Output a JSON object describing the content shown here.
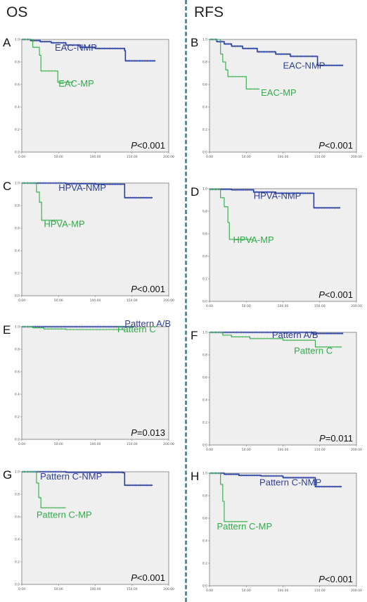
{
  "titles": {
    "left": "OS",
    "right": "RFS"
  },
  "colors": {
    "navy": "#2e3f8f",
    "navy_mark": "#4a62c9",
    "green": "#33aa4a",
    "green_mark": "#7ccf86"
  },
  "chart_data": [
    {
      "type": "line",
      "panel": "A",
      "p_prefix": "P",
      "p_value": "<0.001",
      "xlim": [
        0,
        200
      ],
      "ylim": [
        0,
        1.0
      ],
      "x_ticks": [
        "0.00",
        "50.00",
        "100.00",
        "150.00",
        "200.00"
      ],
      "y_ticks": [
        "0.0",
        "0.2",
        "0.4",
        "0.6",
        "0.8",
        "1.0"
      ],
      "series": [
        {
          "name": "EAC-NMP",
          "color": "navy",
          "label_anchor": [
            45,
            0.9
          ],
          "steps": [
            [
              0,
              1.0
            ],
            [
              12,
              0.99
            ],
            [
              25,
              0.98
            ],
            [
              40,
              0.97
            ],
            [
              60,
              0.95
            ],
            [
              80,
              0.93
            ],
            [
              100,
              0.92
            ],
            [
              140,
              0.9
            ],
            [
              141,
              0.81
            ],
            [
              182,
              0.81
            ]
          ]
        },
        {
          "name": "EAC-MP",
          "color": "green",
          "label_anchor": [
            50,
            0.58
          ],
          "steps": [
            [
              0,
              1.0
            ],
            [
              15,
              0.93
            ],
            [
              24,
              0.86
            ],
            [
              26,
              0.72
            ],
            [
              47,
              0.72
            ],
            [
              49,
              0.62
            ],
            [
              70,
              0.62
            ]
          ]
        }
      ]
    },
    {
      "type": "line",
      "panel": "B",
      "p_prefix": "P",
      "p_value": "<0.001",
      "xlim": [
        0,
        200
      ],
      "ylim": [
        0,
        1.0
      ],
      "x_ticks": [
        "0.00",
        "50.00",
        "100.00",
        "150.00",
        "200.00"
      ],
      "y_ticks": [
        "0.0",
        "0.2",
        "0.4",
        "0.6",
        "0.8",
        "1.0"
      ],
      "series": [
        {
          "name": "EAC-NMP",
          "color": "navy",
          "label_anchor": [
            100,
            0.74
          ],
          "steps": [
            [
              0,
              1.0
            ],
            [
              10,
              0.98
            ],
            [
              20,
              0.96
            ],
            [
              30,
              0.94
            ],
            [
              45,
              0.92
            ],
            [
              65,
              0.89
            ],
            [
              90,
              0.87
            ],
            [
              110,
              0.85
            ],
            [
              145,
              0.85
            ],
            [
              147,
              0.77
            ],
            [
              182,
              0.77
            ]
          ]
        },
        {
          "name": "EAC-MP",
          "color": "green",
          "label_anchor": [
            70,
            0.5
          ],
          "steps": [
            [
              0,
              1.0
            ],
            [
              15,
              0.87
            ],
            [
              18,
              0.8
            ],
            [
              22,
              0.73
            ],
            [
              25,
              0.67
            ],
            [
              47,
              0.67
            ],
            [
              50,
              0.56
            ],
            [
              68,
              0.56
            ]
          ]
        }
      ]
    },
    {
      "type": "line",
      "panel": "C",
      "p_prefix": "P",
      "p_value": "<0.001",
      "xlim": [
        0,
        200
      ],
      "ylim": [
        0,
        1.0
      ],
      "x_ticks": [
        "0.00",
        "50.00",
        "100.00",
        "150.00",
        "200.00"
      ],
      "y_ticks": [
        "0.0",
        "0.2",
        "0.4",
        "0.6",
        "0.8",
        "1.0"
      ],
      "series": [
        {
          "name": "HPVA-NMP",
          "color": "navy",
          "label_anchor": [
            50,
            0.93
          ],
          "steps": [
            [
              0,
              1.0
            ],
            [
              60,
              0.995
            ],
            [
              100,
              0.99
            ],
            [
              138,
              0.99
            ],
            [
              140,
              0.87
            ],
            [
              178,
              0.87
            ]
          ]
        },
        {
          "name": "HPVA-MP",
          "color": "green",
          "label_anchor": [
            30,
            0.61
          ],
          "steps": [
            [
              0,
              1.0
            ],
            [
              20,
              0.92
            ],
            [
              24,
              0.83
            ],
            [
              27,
              0.67
            ],
            [
              38,
              0.67
            ],
            [
              55,
              0.67
            ]
          ]
        }
      ]
    },
    {
      "type": "line",
      "panel": "D",
      "p_prefix": "P",
      "p_value": "<0.001",
      "xlim": [
        0,
        200
      ],
      "ylim": [
        0,
        1.0
      ],
      "x_ticks": [
        "0.00",
        "50.00",
        "100.00",
        "150.00",
        "200.00"
      ],
      "y_ticks": [
        "0.0",
        "0.2",
        "0.4",
        "0.6",
        "0.8",
        "1.0"
      ],
      "series": [
        {
          "name": "HPVA-NMP",
          "color": "navy",
          "label_anchor": [
            60,
            0.91
          ],
          "steps": [
            [
              0,
              0.995
            ],
            [
              30,
              0.99
            ],
            [
              60,
              0.97
            ],
            [
              90,
              0.96
            ],
            [
              140,
              0.96
            ],
            [
              142,
              0.83
            ],
            [
              178,
              0.83
            ]
          ]
        },
        {
          "name": "HPVA-MP",
          "color": "green",
          "label_anchor": [
            32,
            0.52
          ],
          "steps": [
            [
              0,
              0.995
            ],
            [
              15,
              0.92
            ],
            [
              20,
              0.84
            ],
            [
              25,
              0.7
            ],
            [
              27,
              0.55
            ],
            [
              60,
              0.55
            ]
          ]
        }
      ]
    },
    {
      "type": "line",
      "panel": "E",
      "p_prefix": "P",
      "p_value": "=0.013",
      "xlim": [
        0,
        200
      ],
      "ylim": [
        0,
        1.0
      ],
      "x_ticks": [
        "0.00",
        "50.00",
        "100.00",
        "150.00",
        "200.00"
      ],
      "y_ticks": [
        "0.0",
        "0.2",
        "0.4",
        "0.6",
        "0.8",
        "1.0"
      ],
      "series": [
        {
          "name": "Pattern A/B",
          "color": "navy",
          "label_anchor": [
            140,
            1.0
          ],
          "steps": [
            [
              0,
              1.0
            ],
            [
              140,
              1.0
            ],
            [
              152,
              0.995
            ]
          ]
        },
        {
          "name": "Pattern C",
          "color": "green",
          "label_anchor": [
            130,
            0.95
          ],
          "steps": [
            [
              0,
              1.0
            ],
            [
              15,
              0.99
            ],
            [
              30,
              0.98
            ],
            [
              60,
              0.975
            ],
            [
              140,
              0.975
            ]
          ]
        }
      ]
    },
    {
      "type": "line",
      "panel": "F",
      "p_prefix": "P",
      "p_value": "=0.011",
      "xlim": [
        0,
        200
      ],
      "ylim": [
        0,
        1.0
      ],
      "x_ticks": [
        "0.00",
        "50.00",
        "100.00",
        "150.00",
        "200.00"
      ],
      "y_ticks": [
        "0.0",
        "0.2",
        "0.4",
        "0.6",
        "0.8",
        "1.0"
      ],
      "series": [
        {
          "name": "Pattern A/B",
          "color": "navy",
          "label_anchor": [
            85,
            0.95
          ],
          "steps": [
            [
              0,
              1.0
            ],
            [
              40,
              1.0
            ],
            [
              140,
              0.99
            ],
            [
              182,
              0.99
            ]
          ]
        },
        {
          "name": "Pattern C",
          "color": "green",
          "label_anchor": [
            115,
            0.81
          ],
          "steps": [
            [
              0,
              1.0
            ],
            [
              18,
              0.975
            ],
            [
              30,
              0.96
            ],
            [
              55,
              0.945
            ],
            [
              100,
              0.93
            ],
            [
              142,
              0.93
            ],
            [
              144,
              0.87
            ],
            [
              180,
              0.87
            ]
          ]
        }
      ]
    },
    {
      "type": "line",
      "panel": "G",
      "p_prefix": "P",
      "p_value": "<0.001",
      "xlim": [
        0,
        200
      ],
      "ylim": [
        0,
        1.0
      ],
      "x_ticks": [
        "0.00",
        "50.00",
        "100.00",
        "150.00",
        "200.00"
      ],
      "y_ticks": [
        "0.0",
        "0.2",
        "0.4",
        "0.6",
        "0.8",
        "1.0"
      ],
      "series": [
        {
          "name": "Pattern C-NMP",
          "color": "navy",
          "label_anchor": [
            25,
            0.93
          ],
          "steps": [
            [
              0,
              1.0
            ],
            [
              60,
              0.995
            ],
            [
              138,
              0.99
            ],
            [
              140,
              0.88
            ],
            [
              178,
              0.88
            ]
          ]
        },
        {
          "name": "Pattern C-MP",
          "color": "green",
          "label_anchor": [
            20,
            0.59
          ],
          "steps": [
            [
              0,
              1.0
            ],
            [
              20,
              0.9
            ],
            [
              23,
              0.77
            ],
            [
              26,
              0.68
            ],
            [
              55,
              0.68
            ],
            [
              60,
              0.68
            ]
          ]
        }
      ]
    },
    {
      "type": "line",
      "panel": "H",
      "p_prefix": "P",
      "p_value": "<0.001",
      "xlim": [
        0,
        200
      ],
      "ylim": [
        0,
        1.0
      ],
      "x_ticks": [
        "0.00",
        "50.00",
        "100.00",
        "150.00",
        "200.00"
      ],
      "y_ticks": [
        "0.0",
        "0.2",
        "0.4",
        "0.6",
        "0.8",
        "1.0"
      ],
      "series": [
        {
          "name": "Pattern C-NMP",
          "color": "navy",
          "label_anchor": [
            68,
            0.89
          ],
          "steps": [
            [
              0,
              1.0
            ],
            [
              20,
              0.99
            ],
            [
              40,
              0.98
            ],
            [
              70,
              0.975
            ],
            [
              100,
              0.96
            ],
            [
              142,
              0.96
            ],
            [
              144,
              0.88
            ],
            [
              180,
              0.88
            ]
          ]
        },
        {
          "name": "Pattern C-MP",
          "color": "green",
          "label_anchor": [
            10,
            0.5
          ],
          "steps": [
            [
              0,
              1.0
            ],
            [
              15,
              0.9
            ],
            [
              18,
              0.75
            ],
            [
              20,
              0.57
            ],
            [
              52,
              0.57
            ]
          ]
        }
      ]
    }
  ]
}
